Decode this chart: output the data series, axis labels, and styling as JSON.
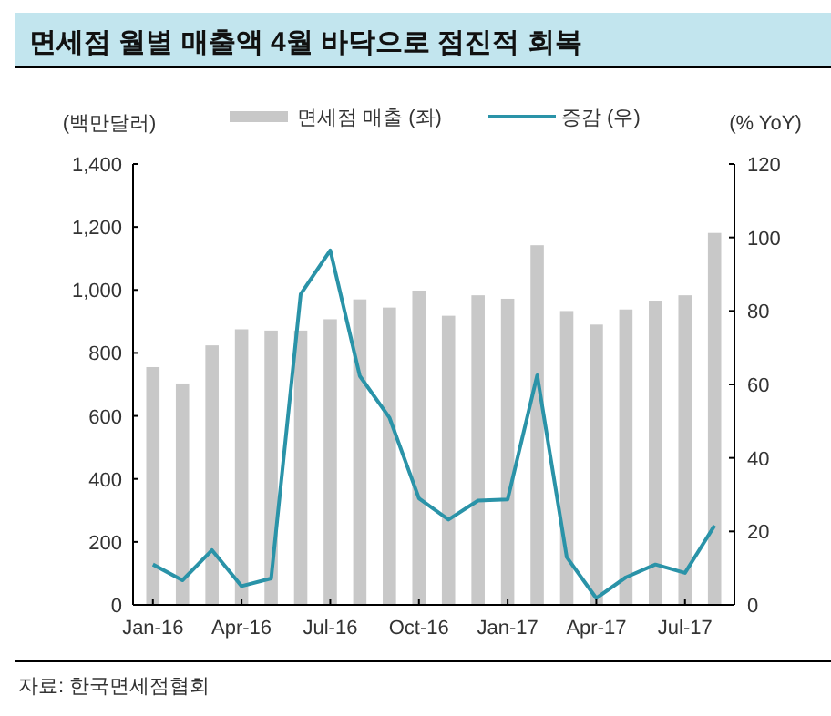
{
  "chart_data": {
    "type": "bar",
    "title": "면세점 월별 매출액 4월 바닥으로 점진적 회복",
    "ylabel": "(백만달러)",
    "y2label": "(% YoY)",
    "categories": [
      "Jan-16",
      null,
      null,
      "Apr-16",
      null,
      null,
      "Jul-16",
      null,
      null,
      "Oct-16",
      null,
      null,
      "Jan-17",
      null,
      null,
      "Apr-17",
      null,
      null,
      "Jul-17",
      null
    ],
    "series": [
      {
        "name": "면세점 매출 (좌)",
        "color": "#c8c8c8",
        "values": [
          755,
          703,
          824,
          875,
          871,
          871,
          907,
          970,
          944,
          998,
          918,
          983,
          972,
          1142,
          933,
          890,
          938,
          966,
          983,
          1181
        ]
      },
      {
        "name": "증감 (우)",
        "type": "line",
        "axis": "y2",
        "color": "#2a93a8",
        "values": [
          11,
          6.7,
          14.9,
          5.1,
          7.2,
          84.6,
          96.5,
          62.3,
          51,
          29,
          23.2,
          28.4,
          28.7,
          62.5,
          13,
          1.8,
          7.5,
          11,
          8.7,
          21.6
        ]
      }
    ],
    "ylim": [
      0,
      1400
    ],
    "yticks": [
      {
        "value": 0,
        "label": "0"
      },
      {
        "value": 200,
        "label": "200"
      },
      {
        "value": 400,
        "label": "400"
      },
      {
        "value": 600,
        "label": "600"
      },
      {
        "value": 800,
        "label": "800"
      },
      {
        "value": 1000,
        "label": "1,000"
      },
      {
        "value": 1200,
        "label": "1,200"
      },
      {
        "value": 1400,
        "label": "1,400"
      }
    ],
    "y2lim": [
      0,
      120
    ],
    "y2ticks": [
      0,
      20,
      40,
      60,
      80,
      100,
      120
    ],
    "legend": "top",
    "grid": false,
    "marker": "none",
    "line_style": "solid",
    "annotations": [
      "자료: 한국면세점협회"
    ]
  }
}
